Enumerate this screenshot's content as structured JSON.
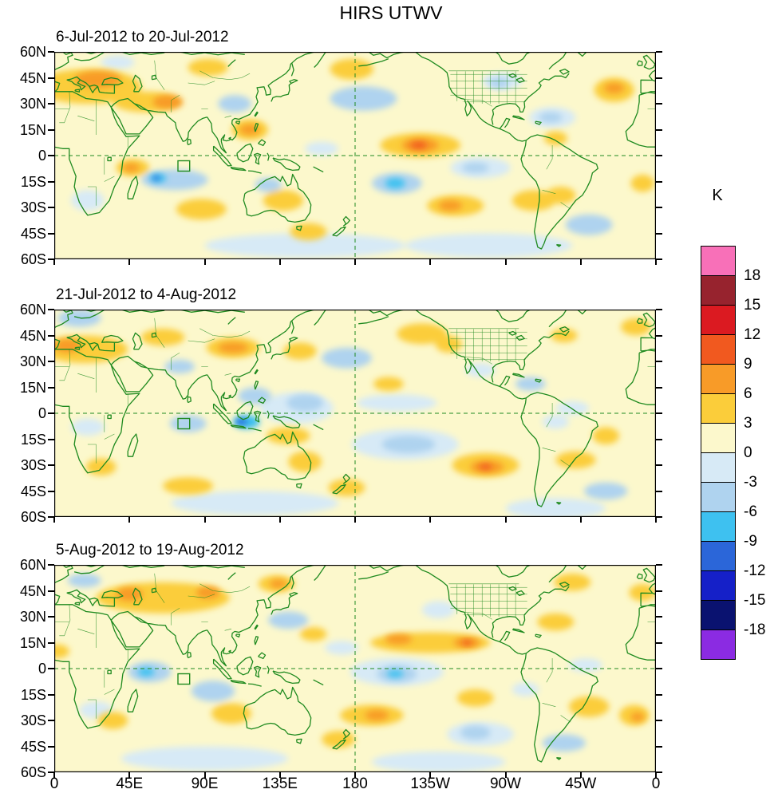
{
  "title": "HIRS UTWV",
  "colorbar": {
    "label": "K",
    "tick_labels": [
      "18",
      "15",
      "12",
      "9",
      "6",
      "3",
      "0",
      "-3",
      "-6",
      "-9",
      "-12",
      "-15",
      "-18"
    ],
    "cell_colors_top_to_bottom": [
      "#F870B8",
      "#97232E",
      "#DB1A21",
      "#F1591F",
      "#F89B28",
      "#FBCD3A",
      "#FCF8CC",
      "#D7EAF6",
      "#AFD3EF",
      "#3EC1F0",
      "#2B66D9",
      "#1520C8",
      "#0A1270",
      "#8B2BE2"
    ]
  },
  "axes": {
    "x_tick_labels": [
      "0",
      "45E",
      "90E",
      "135E",
      "180",
      "135W",
      "90W",
      "45W",
      "0"
    ],
    "y_tick_labels": [
      "60N",
      "45N",
      "30N",
      "15N",
      "0",
      "15S",
      "30S",
      "45S",
      "60S"
    ]
  },
  "chart_data": {
    "type": "heatmap",
    "units": "K",
    "projection": {
      "lon_range": [
        0,
        360
      ],
      "lat_range": [
        -60,
        60
      ]
    },
    "map_colors": {
      "land_outline": "#1f8a1f",
      "frame": "#000000"
    },
    "band_legend": {
      "1": "0..3 K",
      "2": "3..6 K",
      "3": "6..9 K",
      "4": "9..12 K",
      "-1": "-3..0 K",
      "-2": "-6..-3 K",
      "-3": "-9..-6 K",
      "-4": "-12..-9 K"
    },
    "level_colors": {
      "1": "#FCF8CC",
      "2": "#FBCD3A",
      "3": "#F89B28",
      "4": "#F1591F",
      "-1": "#D7EAF6",
      "-2": "#AFD3EF",
      "-3": "#3EC1F0",
      "-4": "#2B66D9"
    },
    "roi_box": {
      "lon_min": 74,
      "lon_max": 81,
      "lat_min": -9,
      "lat_max": -3
    },
    "feature_format": [
      "lon_deg_east_0_360",
      "lat_deg",
      "radius_lon_deg",
      "radius_lat_deg",
      "color_band"
    ],
    "panels": [
      {
        "title": "6-Jul-2012 to 20-Jul-2012",
        "features": [
          [
            20,
            40,
            32,
            10,
            2
          ],
          [
            26,
            44,
            14,
            5,
            3
          ],
          [
            55,
            31,
            20,
            6,
            2
          ],
          [
            68,
            31,
            9,
            4,
            3
          ],
          [
            117,
            15,
            11,
            6,
            2
          ],
          [
            117,
            15,
            6,
            3,
            3
          ],
          [
            219,
            6,
            24,
            7,
            2
          ],
          [
            219,
            6,
            11,
            4,
            3
          ],
          [
            218,
            6,
            5,
            2,
            4
          ],
          [
            335,
            38,
            12,
            7,
            2
          ],
          [
            335,
            39,
            6,
            3,
            3
          ],
          [
            47,
            -7,
            10,
            5,
            2
          ],
          [
            46,
            -7,
            5,
            2.5,
            3
          ],
          [
            88,
            -31,
            15,
            6,
            2
          ],
          [
            137,
            -26,
            12,
            6,
            2
          ],
          [
            240,
            -29,
            17,
            6,
            2
          ],
          [
            237,
            -29,
            7,
            3,
            3
          ],
          [
            287,
            -26,
            13,
            6,
            2
          ],
          [
            303,
            -23,
            9,
            5,
            2
          ],
          [
            178,
            50,
            13,
            6,
            2
          ],
          [
            92,
            51,
            12,
            5,
            2
          ],
          [
            152,
            -44,
            11,
            5,
            2
          ],
          [
            352,
            -16,
            7,
            5,
            2
          ],
          [
            300,
            10,
            7,
            4,
            2
          ],
          [
            72,
            -14,
            20,
            6,
            -2
          ],
          [
            62,
            -13,
            5,
            2.5,
            -3
          ],
          [
            61,
            -13,
            2.5,
            1.2,
            -4
          ],
          [
            108,
            30,
            10,
            5,
            -2
          ],
          [
            185,
            33,
            20,
            7,
            -2
          ],
          [
            205,
            -16,
            15,
            6,
            -2
          ],
          [
            204,
            -16,
            6,
            3,
            -3
          ],
          [
            255,
            -7,
            18,
            6,
            -1
          ],
          [
            252,
            -7,
            8,
            3,
            -2
          ],
          [
            298,
            22,
            14,
            6,
            -1
          ],
          [
            297,
            22,
            7,
            3,
            -2
          ],
          [
            268,
            43,
            12,
            5,
            -1
          ],
          [
            266,
            42,
            6,
            3,
            -2
          ],
          [
            128,
            -17,
            8,
            4,
            -2
          ],
          [
            320,
            -40,
            14,
            6,
            -2
          ],
          [
            20,
            -26,
            10,
            6,
            -1
          ],
          [
            160,
            4,
            10,
            4,
            -1
          ],
          [
            38,
            54,
            10,
            4,
            -1
          ],
          [
            150,
            -52,
            60,
            7,
            -1
          ],
          [
            260,
            -52,
            50,
            7,
            -1
          ]
        ]
      },
      {
        "title": "21-Jul-2012 to 4-Aug-2012",
        "features": [
          [
            18,
            37,
            26,
            8,
            2
          ],
          [
            8,
            39,
            8,
            4,
            3
          ],
          [
            65,
            44,
            13,
            5,
            2
          ],
          [
            107,
            38,
            16,
            6,
            2
          ],
          [
            107,
            38,
            9,
            3,
            3
          ],
          [
            147,
            36,
            10,
            5,
            2
          ],
          [
            220,
            46,
            15,
            6,
            2
          ],
          [
            236,
            40,
            8,
            5,
            2
          ],
          [
            305,
            45,
            8,
            4,
            2
          ],
          [
            140,
            -13,
            13,
            5,
            2
          ],
          [
            150,
            -28,
            10,
            6,
            2
          ],
          [
            258,
            -30,
            20,
            7,
            2
          ],
          [
            259,
            -31,
            10,
            3.5,
            3
          ],
          [
            258,
            -31,
            4,
            1.6,
            4
          ],
          [
            312,
            -27,
            12,
            5,
            2
          ],
          [
            175,
            -43,
            11,
            5,
            2
          ],
          [
            80,
            -42,
            15,
            5,
            2
          ],
          [
            348,
            50,
            9,
            5,
            2
          ],
          [
            330,
            -13,
            8,
            5,
            2
          ],
          [
            28,
            -31,
            9,
            5,
            2
          ],
          [
            200,
            17,
            9,
            4,
            2
          ],
          [
            145,
            3,
            22,
            9,
            -1
          ],
          [
            150,
            6,
            11,
            5,
            -2
          ],
          [
            115,
            -5,
            8,
            4,
            -3
          ],
          [
            112,
            -5,
            3.5,
            1.8,
            -4
          ],
          [
            120,
            10,
            10,
            5,
            -2
          ],
          [
            80,
            -6,
            11,
            5,
            -2
          ],
          [
            210,
            -18,
            32,
            9,
            -1
          ],
          [
            212,
            -18,
            16,
            5,
            -2
          ],
          [
            205,
            6,
            24,
            5,
            -1
          ],
          [
            175,
            32,
            15,
            6,
            -2
          ],
          [
            75,
            27,
            9,
            4,
            -2
          ],
          [
            15,
            55,
            13,
            5,
            -2
          ],
          [
            285,
            17,
            9,
            4,
            -2
          ],
          [
            310,
            3,
            10,
            4,
            -1
          ],
          [
            330,
            -45,
            13,
            5,
            -2
          ],
          [
            20,
            -8,
            10,
            5,
            -1
          ],
          [
            255,
            25,
            9,
            4,
            -1
          ],
          [
            300,
            -5,
            8,
            4,
            -1
          ],
          [
            120,
            -52,
            50,
            7,
            -1
          ],
          [
            300,
            -55,
            30,
            6,
            -1
          ]
        ]
      },
      {
        "title": "5-Aug-2012 to 19-Aug-2012",
        "features": [
          [
            65,
            41,
            40,
            9,
            2
          ],
          [
            45,
            43,
            8,
            4,
            3
          ],
          [
            92,
            44,
            7,
            3.5,
            3
          ],
          [
            225,
            15,
            36,
            6,
            2
          ],
          [
            206,
            17,
            8,
            3,
            3
          ],
          [
            247,
            15,
            8,
            3,
            3
          ],
          [
            247,
            15,
            3,
            1.4,
            4
          ],
          [
            190,
            -27,
            19,
            6,
            2
          ],
          [
            193,
            -27,
            7,
            3,
            3
          ],
          [
            252,
            -17,
            11,
            5,
            2
          ],
          [
            320,
            -22,
            12,
            6,
            2
          ],
          [
            347,
            -27,
            9,
            6,
            2
          ],
          [
            349,
            -28,
            4,
            2.5,
            3
          ],
          [
            106,
            -26,
            12,
            6,
            2
          ],
          [
            170,
            -41,
            10,
            5,
            2
          ],
          [
            310,
            50,
            11,
            5,
            2
          ],
          [
            352,
            44,
            8,
            5,
            2
          ],
          [
            300,
            27,
            11,
            5,
            2
          ],
          [
            2,
            10,
            7,
            4,
            2
          ],
          [
            133,
            49,
            11,
            5,
            2
          ],
          [
            134,
            49,
            5,
            2.5,
            3
          ],
          [
            155,
            20,
            8,
            4,
            2
          ],
          [
            35,
            -30,
            9,
            5,
            2
          ],
          [
            57,
            -2,
            13,
            6,
            -2
          ],
          [
            55,
            -2,
            5,
            2.5,
            -3
          ],
          [
            95,
            -13,
            13,
            6,
            -2
          ],
          [
            205,
            -2,
            28,
            8,
            -1
          ],
          [
            205,
            -3,
            12,
            5,
            -2
          ],
          [
            204,
            -3,
            5,
            2.2,
            -3
          ],
          [
            255,
            -38,
            20,
            7,
            -1
          ],
          [
            252,
            -37,
            9,
            4,
            -2
          ],
          [
            305,
            -43,
            13,
            5,
            -2
          ],
          [
            318,
            2,
            10,
            4,
            -1
          ],
          [
            140,
            28,
            12,
            5,
            -2
          ],
          [
            25,
            -24,
            10,
            5,
            -1
          ],
          [
            18,
            51,
            10,
            4,
            -2
          ],
          [
            172,
            12,
            10,
            4,
            -1
          ],
          [
            282,
            -12,
            8,
            4,
            -1
          ],
          [
            230,
            34,
            10,
            5,
            -1
          ],
          [
            90,
            -52,
            50,
            7,
            -1
          ],
          [
            230,
            -54,
            40,
            6,
            -1
          ]
        ]
      }
    ]
  }
}
